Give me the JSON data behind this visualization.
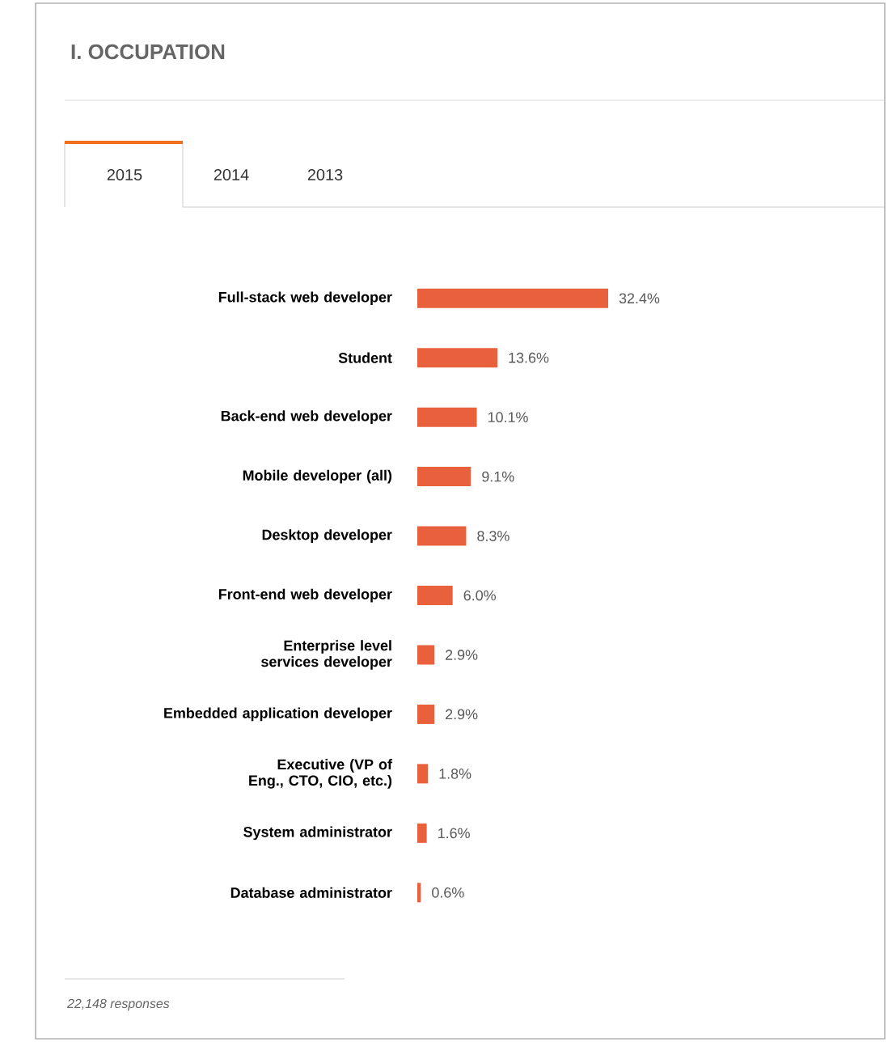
{
  "chart_data": {
    "type": "bar",
    "orientation": "horizontal",
    "title": "I. OCCUPATION",
    "categories": [
      "Full-stack web developer",
      "Student",
      "Back-end web developer",
      "Mobile developer (all)",
      "Desktop developer",
      "Front-end web developer",
      "Enterprise level services developer",
      "Embedded application developer",
      "Executive (VP of Eng., CTO, CIO, etc.)",
      "System administrator",
      "Database administrator"
    ],
    "values": [
      32.4,
      13.6,
      10.1,
      9.1,
      8.3,
      6.0,
      2.9,
      2.9,
      1.8,
      1.6,
      0.6
    ],
    "value_labels": [
      "32.4%",
      "13.6%",
      "10.1%",
      "9.1%",
      "8.3%",
      "6.0%",
      "2.9%",
      "2.9%",
      "1.8%",
      "1.6%",
      "0.6%"
    ],
    "color": "#e8603c",
    "annotations": [
      "2015",
      "2014",
      "2013",
      "22,148 responses"
    ]
  }
}
